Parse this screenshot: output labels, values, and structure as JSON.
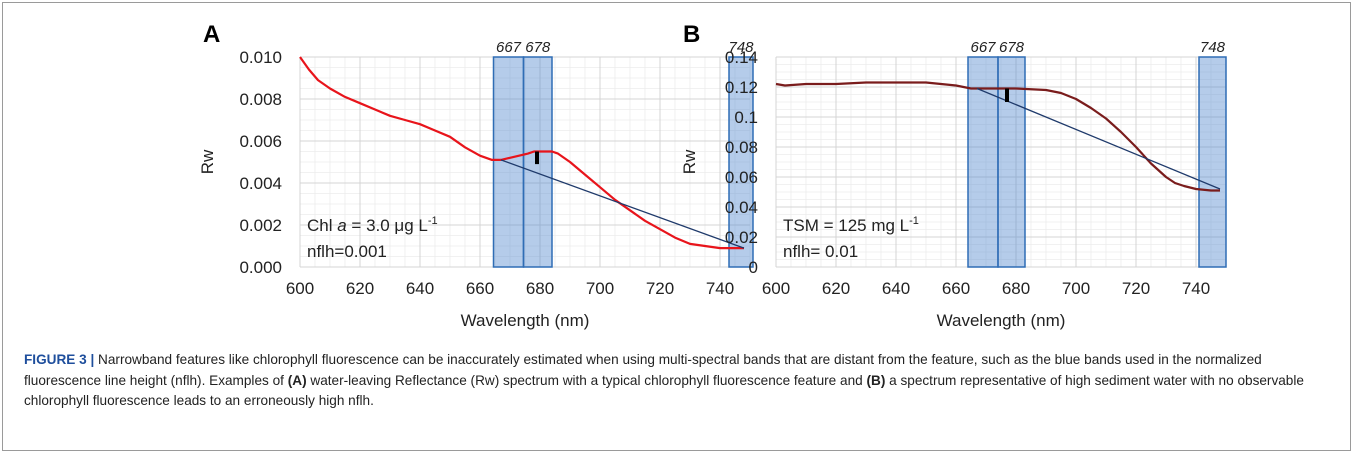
{
  "chart_data": [
    {
      "type": "line",
      "panel_label": "A",
      "xlabel": "Wavelength (nm)",
      "ylabel": "Rw",
      "xlim": [
        600,
        750
      ],
      "ylim": [
        0,
        0.01
      ],
      "xticks": [
        600,
        620,
        640,
        660,
        680,
        700,
        720,
        740
      ],
      "yticks": [
        0,
        0.002,
        0.004,
        0.006,
        0.008,
        0.01
      ],
      "ytick_labels": [
        "0.000",
        "0.002",
        "0.004",
        "0.006",
        "0.008",
        "0.010"
      ],
      "grid": true,
      "line_color": "#e8141b",
      "series": [
        {
          "x": [
            600,
            603,
            606,
            610,
            615,
            620,
            625,
            630,
            635,
            640,
            645,
            650,
            655,
            660,
            664,
            667,
            670,
            673,
            676,
            678,
            681,
            684,
            686,
            690,
            695,
            700,
            705,
            710,
            715,
            720,
            725,
            730,
            735,
            740,
            745,
            748
          ],
          "y": [
            0.01,
            0.0094,
            0.0089,
            0.0085,
            0.0081,
            0.0078,
            0.0075,
            0.0072,
            0.007,
            0.0068,
            0.0065,
            0.0062,
            0.0057,
            0.0053,
            0.0051,
            0.0051,
            0.0052,
            0.0053,
            0.0054,
            0.0055,
            0.0055,
            0.0055,
            0.0054,
            0.005,
            0.0044,
            0.0038,
            0.0032,
            0.0027,
            0.0022,
            0.0018,
            0.0014,
            0.0011,
            0.001,
            0.0009,
            0.0009,
            0.0009
          ]
        }
      ],
      "baseline": {
        "x": [
          667,
          748
        ],
        "y": [
          0.0051,
          0.0009
        ]
      },
      "bands": [
        {
          "label": "667",
          "range": [
            664.5,
            674.5
          ]
        },
        {
          "label": "678",
          "range": [
            674.5,
            684
          ]
        },
        {
          "label": "748",
          "range": [
            743,
            751
          ]
        }
      ],
      "nflh_bar": {
        "x": 679,
        "y": [
          0.0049,
          0.0055
        ]
      },
      "annotation": {
        "line1_pre": "Chl ",
        "line1_var": "a",
        "line1_mid": " = 3.0 μg L",
        "line1_sup": "-1",
        "line2": "nflh=0.001"
      }
    },
    {
      "type": "line",
      "panel_label": "B",
      "xlabel": "Wavelength (nm)",
      "ylabel": "Rw",
      "xlim": [
        600,
        750
      ],
      "ylim": [
        0,
        0.14
      ],
      "xticks": [
        600,
        620,
        640,
        660,
        680,
        700,
        720,
        740
      ],
      "yticks": [
        0,
        0.02,
        0.04,
        0.06,
        0.08,
        0.1,
        0.12,
        0.14
      ],
      "ytick_labels": [
        "0",
        "0.02",
        "0.04",
        "0.06",
        "0.08",
        "0.1",
        "0.12",
        "0.14"
      ],
      "grid": true,
      "line_color": "#7a1c1c",
      "series": [
        {
          "x": [
            600,
            603,
            610,
            620,
            630,
            640,
            650,
            655,
            660,
            665,
            670,
            680,
            690,
            695,
            700,
            705,
            710,
            715,
            720,
            725,
            730,
            733,
            736,
            740,
            745,
            748
          ],
          "y": [
            0.122,
            0.121,
            0.122,
            0.122,
            0.123,
            0.123,
            0.123,
            0.122,
            0.121,
            0.119,
            0.119,
            0.119,
            0.118,
            0.116,
            0.112,
            0.106,
            0.099,
            0.09,
            0.08,
            0.069,
            0.06,
            0.056,
            0.054,
            0.052,
            0.051,
            0.051
          ]
        }
      ],
      "baseline": {
        "x": [
          667,
          748
        ],
        "y": [
          0.119,
          0.052
        ]
      },
      "bands": [
        {
          "label": "667",
          "range": [
            664,
            674
          ]
        },
        {
          "label": "678",
          "range": [
            674,
            683
          ]
        },
        {
          "label": "748",
          "range": [
            741,
            750
          ]
        }
      ],
      "nflh_bar": {
        "x": 677,
        "y": [
          0.11,
          0.119
        ]
      },
      "annotation": {
        "line1_pre": "TSM = 125 mg L",
        "line1_var": "",
        "line1_mid": "",
        "line1_sup": "-1",
        "line2": "nflh= 0.01"
      }
    }
  ],
  "caption": {
    "label": "FIGURE 3 |",
    "text_1": " Narrowband features like chlorophyll fluorescence can be inaccurately estimated when using multi-spectral bands that are distant from the feature, such as the blue bands used in the normalized fluorescence line height (nflh). Examples of ",
    "ref_a": "(A)",
    "text_2": " water-leaving Reflectance (Rw) spectrum with a typical chlorophyll fluorescence feature and ",
    "ref_b": "(B)",
    "text_3": " a spectrum representative of high sediment water with no observable chlorophyll fluorescence leads to an erroneously high nflh."
  }
}
